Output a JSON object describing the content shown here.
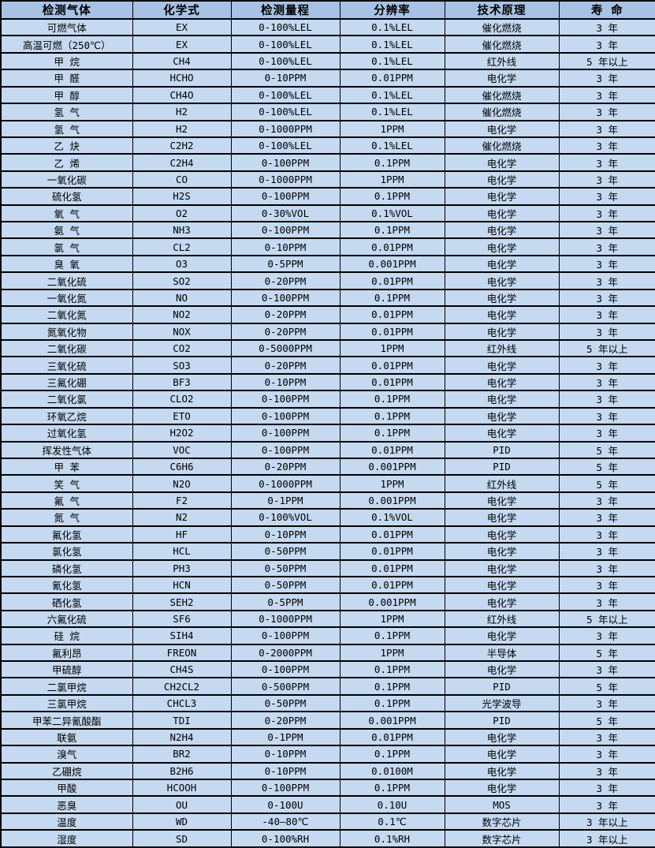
{
  "colors": {
    "header_bg": "#A7C2E4",
    "row_bg": "#C5D9F1",
    "border": "#000000",
    "text": "#000000"
  },
  "table": {
    "columns": [
      "检测气体",
      "化学式",
      "检测量程",
      "分辨率",
      "技术原理",
      "寿 命"
    ],
    "rows": [
      [
        "可燃气体",
        "EX",
        "0-100%LEL",
        "0.1%LEL",
        "催化燃烧",
        "3 年"
      ],
      [
        "高温可燃（250℃）",
        "EX",
        "0-100%LEL",
        "0.1%LEL",
        "催化燃烧",
        "3 年"
      ],
      [
        "甲 烷",
        "CH4",
        "0-100%LEL",
        "0.1%LEL",
        "红外线",
        "5 年以上"
      ],
      [
        "甲 醛",
        "HCHO",
        "0-10PPM",
        "0.01PPM",
        "电化学",
        "3 年"
      ],
      [
        "甲 醇",
        "CH4O",
        "0-100%LEL",
        "0.1%LEL",
        "催化燃烧",
        "3 年"
      ],
      [
        "氢 气",
        "H2",
        "0-100%LEL",
        "0.1%LEL",
        "催化燃烧",
        "3 年"
      ],
      [
        "氢 气",
        "H2",
        "0-1000PPM",
        "1PPM",
        "电化学",
        "3 年"
      ],
      [
        "乙 炔",
        "C2H2",
        "0-100%LEL",
        "0.1%LEL",
        "催化燃烧",
        "3 年"
      ],
      [
        "乙 烯",
        "C2H4",
        "0-100PPM",
        "0.1PPM",
        "电化学",
        "3 年"
      ],
      [
        "一氧化碳",
        "CO",
        "0-1000PPM",
        "1PPM",
        "电化学",
        "3 年"
      ],
      [
        "硫化氢",
        "H2S",
        "0-100PPM",
        "0.1PPM",
        "电化学",
        "3 年"
      ],
      [
        "氧 气",
        "O2",
        "0-30%VOL",
        "0.1%VOL",
        "电化学",
        "3 年"
      ],
      [
        "氨 气",
        "NH3",
        "0-100PPM",
        "0.1PPM",
        "电化学",
        "3 年"
      ],
      [
        "氯 气",
        "CL2",
        "0-10PPM",
        "0.01PPM",
        "电化学",
        "3 年"
      ],
      [
        "臭 氧",
        "O3",
        "0-5PPM",
        "0.001PPM",
        "电化学",
        "3 年"
      ],
      [
        "二氧化硫",
        "SO2",
        "0-20PPM",
        "0.01PPM",
        "电化学",
        "3 年"
      ],
      [
        "一氧化氮",
        "NO",
        "0-100PPM",
        "0.1PPM",
        "电化学",
        "3 年"
      ],
      [
        "二氧化氮",
        "NO2",
        "0-20PPM",
        "0.01PPM",
        "电化学",
        "3 年"
      ],
      [
        "氮氧化物",
        "NOX",
        "0-20PPM",
        "0.01PPM",
        "电化学",
        "3 年"
      ],
      [
        "二氧化碳",
        "CO2",
        "0-5000PPM",
        "1PPM",
        "红外线",
        "5 年以上"
      ],
      [
        "三氧化硫",
        "SO3",
        "0-20PPM",
        "0.01PPM",
        "电化学",
        "3 年"
      ],
      [
        "三氟化硼",
        "BF3",
        "0-10PPM",
        "0.01PPM",
        "电化学",
        "3 年"
      ],
      [
        "二氧化氯",
        "CLO2",
        "0-100PPM",
        "0.1PPM",
        "电化学",
        "3 年"
      ],
      [
        "环氧乙烷",
        "ETO",
        "0-100PPM",
        "0.1PPM",
        "电化学",
        "3 年"
      ],
      [
        "过氧化氢",
        "H2O2",
        "0-100PPM",
        "0.1PPM",
        "电化学",
        "3 年"
      ],
      [
        "挥发性气体",
        "VOC",
        "0-100PPM",
        "0.01PPM",
        "PID",
        "5 年"
      ],
      [
        "甲 苯",
        "C6H6",
        "0-20PPM",
        "0.001PPM",
        "PID",
        "5 年"
      ],
      [
        "笑 气",
        "N2O",
        "0-1000PPM",
        "1PPM",
        "红外线",
        "5 年"
      ],
      [
        "氟 气",
        "F2",
        "0-1PPM",
        "0.001PPM",
        "电化学",
        "3 年"
      ],
      [
        "氮 气",
        "N2",
        "0-100%VOL",
        "0.1%VOL",
        "电化学",
        "3 年"
      ],
      [
        "氟化氢",
        "HF",
        "0-10PPM",
        "0.01PPM",
        "电化学",
        "3 年"
      ],
      [
        "氯化氢",
        "HCL",
        "0-50PPM",
        "0.01PPM",
        "电化学",
        "3 年"
      ],
      [
        "磷化氢",
        "PH3",
        "0-50PPM",
        "0.01PPM",
        "电化学",
        "3 年"
      ],
      [
        "氰化氢",
        "HCN",
        "0-50PPM",
        "0.01PPM",
        "电化学",
        "3 年"
      ],
      [
        "硒化氢",
        "SEH2",
        "0-5PPM",
        "0.001PPM",
        "电化学",
        "3 年"
      ],
      [
        "六氟化硫",
        "SF6",
        "0-1000PPM",
        "1PPM",
        "红外线",
        "5 年以上"
      ],
      [
        "硅 烷",
        "SIH4",
        "0-100PPM",
        "0.1PPM",
        "电化学",
        "3 年"
      ],
      [
        "氟利昂",
        "FREON",
        "0-2000PPM",
        "1PPM",
        "半导体",
        "5 年"
      ],
      [
        "甲硫醇",
        "CH4S",
        "0-100PPM",
        "0.1PPM",
        "电化学",
        "3 年"
      ],
      [
        "二氯甲烷",
        "CH2CL2",
        "0-500PPM",
        "0.1PPM",
        "PID",
        "5 年"
      ],
      [
        "三氯甲烷",
        "CHCL3",
        "0-50PPM",
        "0.1PPM",
        "光学波导",
        "3 年"
      ],
      [
        "甲苯二异氰酸酯",
        "TDI",
        "0-20PPM",
        "0.001PPM",
        "PID",
        "5 年"
      ],
      [
        "联氨",
        "N2H4",
        "0-1PPM",
        "0.01PPM",
        "电化学",
        "3 年"
      ],
      [
        "溴气",
        "BR2",
        "0-10PPM",
        "0.1PPM",
        "电化学",
        "3 年"
      ],
      [
        "乙硼烷",
        "B2H6",
        "0-10PPM",
        "0.0100M",
        "电化学",
        "3 年"
      ],
      [
        "甲酸",
        "HCOOH",
        "0-100PPM",
        "0.1PPM",
        "电化学",
        "3 年"
      ],
      [
        "恶臭",
        "OU",
        "0-100U",
        "0.10U",
        "MOS",
        "3 年"
      ],
      [
        "温度",
        "WD",
        "-40—80℃",
        "0.1℃",
        "数字芯片",
        "3 年以上"
      ],
      [
        "湿度",
        "SD",
        "0-100%RH",
        "0.1%RH",
        "数字芯片",
        "3 年以上"
      ]
    ]
  }
}
